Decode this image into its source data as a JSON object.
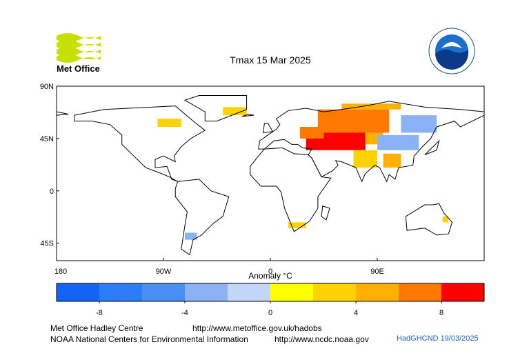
{
  "chart_data": {
    "type": "map",
    "title": "Tmax 15 Mar 2025",
    "logo_text": "Met Office",
    "xticks": [
      {
        "value": -180,
        "label": "180"
      },
      {
        "value": -90,
        "label": "90W"
      },
      0,
      {
        "value": 90,
        "label": "90E"
      }
    ],
    "yticks": [
      {
        "value": 90,
        "label": "90N"
      },
      {
        "value": 45,
        "label": "45N"
      },
      0,
      {
        "value": -45,
        "label": "45S"
      }
    ],
    "xlim": [
      -180,
      180
    ],
    "ylim": [
      -60,
      90
    ],
    "anomaly_regions": [
      {
        "lon": [
          40,
          100
        ],
        "lat": [
          50,
          70
        ],
        "value": 7
      },
      {
        "lon": [
          60,
          110
        ],
        "lat": [
          70,
          75
        ],
        "value": 5
      },
      {
        "lon": [
          30,
          80
        ],
        "lat": [
          35,
          50
        ],
        "value": 9
      },
      {
        "lon": [
          25,
          45
        ],
        "lat": [
          45,
          55
        ],
        "value": 7
      },
      {
        "lon": [
          80,
          95
        ],
        "lat": [
          40,
          50
        ],
        "value": 5
      },
      {
        "lon": [
          90,
          125
        ],
        "lat": [
          35,
          48
        ],
        "value": -3
      },
      {
        "lon": [
          110,
          140
        ],
        "lat": [
          50,
          65
        ],
        "value": -3
      },
      {
        "lon": [
          70,
          90
        ],
        "lat": [
          20,
          35
        ],
        "value": 3
      },
      {
        "lon": [
          95,
          110
        ],
        "lat": [
          20,
          32
        ],
        "value": 5
      },
      {
        "lon": [
          -40,
          -20
        ],
        "lat": [
          65,
          72
        ],
        "value": 3
      },
      {
        "lon": [
          -95,
          -75
        ],
        "lat": [
          55,
          62
        ],
        "value": 3
      },
      {
        "lon": [
          15,
          30
        ],
        "lat": [
          -32,
          -27
        ],
        "value": 3
      },
      {
        "lon": [
          -72,
          -62
        ],
        "lat": [
          -42,
          -36
        ],
        "value": -3
      },
      {
        "lon": [
          145,
          150
        ],
        "lat": [
          -27,
          -22
        ],
        "value": 3
      }
    ],
    "colorbar": {
      "label": "Anomaly °C",
      "bounds": [
        -10,
        -8,
        -6,
        -4,
        -2,
        0,
        2,
        4,
        6,
        8,
        10
      ],
      "colors": [
        "#1464f4",
        "#2d7cf7",
        "#4a8ff5",
        "#8ab2f4",
        "#c2d6fa",
        "#ffff00",
        "#ffd200",
        "#ffb000",
        "#ff7800",
        "#ff0000"
      ],
      "ticks": [
        -8,
        -4,
        0,
        4,
        8
      ]
    },
    "footer": {
      "line1_left": "Met Office Hadley Centre",
      "line1_right": "http://www.metoffice.gov.uk/hadobs",
      "line2_left": "NOAA National Centers for Environmental Information",
      "line2_right": "http://www.ncdc.noaa.gov",
      "dataset": "HadGHCND 19/03/2025"
    }
  }
}
